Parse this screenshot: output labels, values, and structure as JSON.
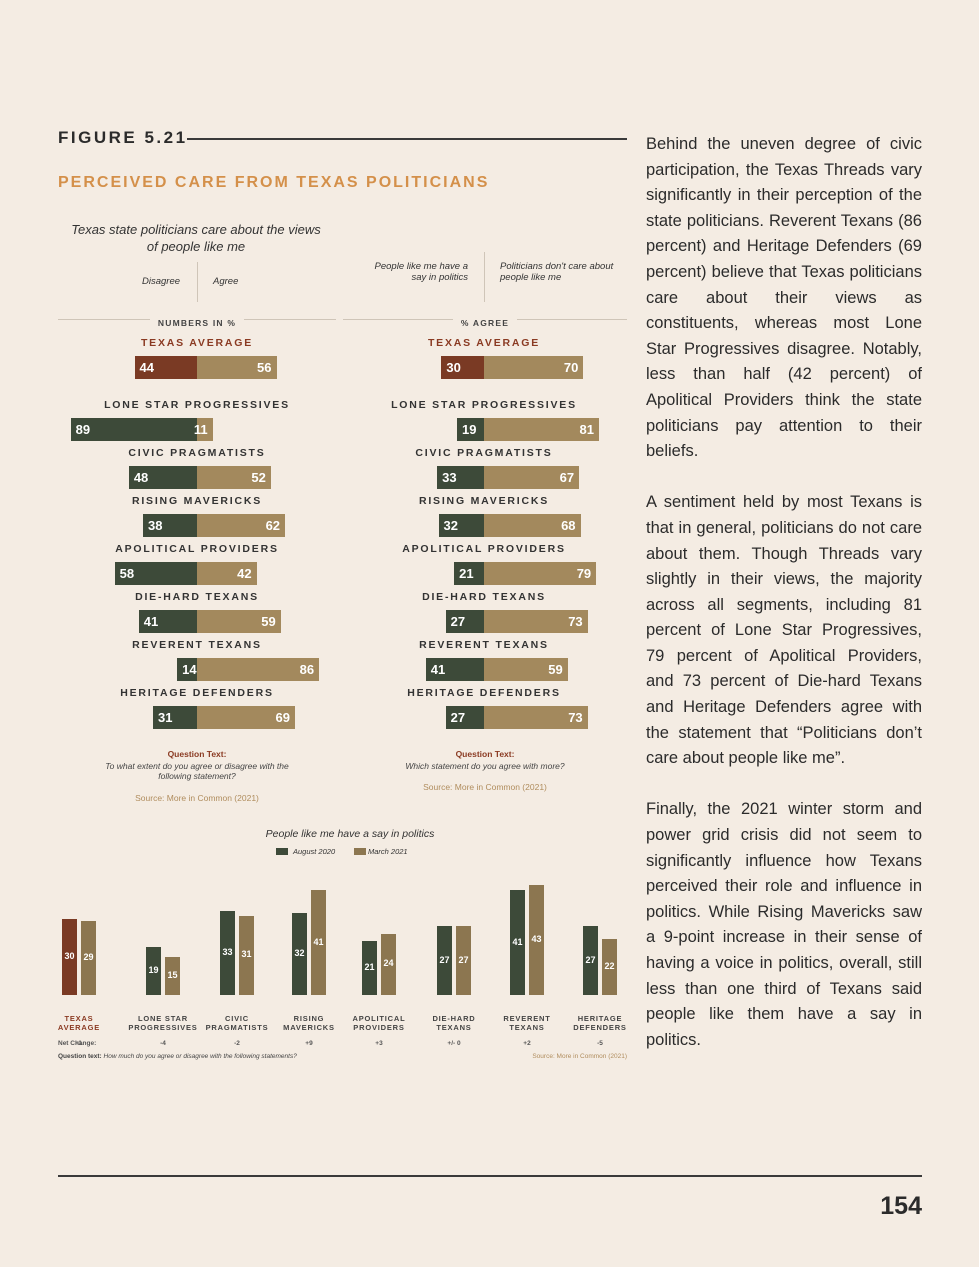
{
  "figure": {
    "label": "FIGURE 5.21",
    "title": "PERCEIVED CARE FROM TEXAS POLITICIANS"
  },
  "colors": {
    "disagree": "#3d4a39",
    "agree": "#a3895d",
    "avg_left": "#7a3a24",
    "aug2020": "#3d4a39",
    "mar2021": "#8c7650",
    "accent": "#d4904a"
  },
  "chart_data": [
    {
      "type": "bar",
      "title": "Texas state politicians care about the views of people like me",
      "section_header": "NUMBERS IN %",
      "series": [
        {
          "name": "Disagree",
          "values": [
            44,
            89,
            48,
            38,
            58,
            41,
            14,
            31
          ]
        },
        {
          "name": "Agree",
          "values": [
            56,
            11,
            52,
            62,
            42,
            59,
            86,
            69
          ]
        }
      ],
      "categories": [
        "TEXAS AVERAGE",
        "LONE STAR PROGRESSIVES",
        "CIVIC PRAGMATISTS",
        "RISING MAVERICKS",
        "APOLITICAL PROVIDERS",
        "DIE-HARD TEXANS",
        "REVERENT TEXANS",
        "HERITAGE DEFENDERS"
      ],
      "question_head": "Question Text:",
      "question_text": "To what extent do you agree or disagree with the following statement?",
      "source": "Source: More in Common (2021)"
    },
    {
      "type": "bar",
      "section_header": "% AGREE",
      "series": [
        {
          "name": "People like me have a say in politics",
          "values": [
            30,
            19,
            33,
            32,
            21,
            27,
            41,
            27
          ]
        },
        {
          "name": "Politicians don't care about people like me",
          "values": [
            70,
            81,
            67,
            68,
            79,
            73,
            59,
            73
          ]
        }
      ],
      "categories": [
        "TEXAS AVERAGE",
        "LONE STAR PROGRESSIVES",
        "CIVIC PRAGMATISTS",
        "RISING MAVERICKS",
        "APOLITICAL PROVIDERS",
        "DIE-HARD TEXANS",
        "REVERENT TEXANS",
        "HERITAGE DEFENDERS"
      ],
      "question_head": "Question Text:",
      "question_text": "Which statement do you agree with more?",
      "source": "Source: More in Common (2021)"
    },
    {
      "type": "bar",
      "title": "People like me have a say in politics",
      "legend": "top-center",
      "series": [
        {
          "name": "August 2020",
          "values": [
            30,
            19,
            33,
            32,
            21,
            27,
            41,
            27
          ]
        },
        {
          "name": "March 2021",
          "values": [
            29,
            15,
            31,
            41,
            24,
            27,
            43,
            22
          ]
        }
      ],
      "categories": [
        [
          "TEXAS",
          "AVERAGE"
        ],
        [
          "LONE STAR",
          "PROGRESSIVES"
        ],
        [
          "CIVIC",
          "PRAGMATISTS"
        ],
        [
          "RISING",
          "MAVERICKS"
        ],
        [
          "APOLITICAL",
          "PROVIDERS"
        ],
        [
          "DIE-HARD",
          "TEXANS"
        ],
        [
          "REVERENT",
          "TEXANS"
        ],
        [
          "HERITAGE",
          "DEFENDERS"
        ]
      ],
      "net_change_label": "Net Change:",
      "net_change": [
        "-1",
        "-4",
        "-2",
        "+9",
        "+3",
        "+/- 0",
        "+2",
        "-5"
      ],
      "question_head": "Question text:",
      "question_text": "How much do you agree or disagree with the following statements?",
      "source": "Source: More in Common (2021)"
    }
  ],
  "body_paragraphs": [
    "Behind the uneven degree of civic participation, the Texas Threads vary significantly in their perception of the state politicians. Reverent Texans (86 percent) and Heritage Defenders (69 percent) believe that Texas politicians care about their views as constituents, whereas most Lone Star Progressives disagree. Notably, less than half (42 percent) of Apolitical Providers think the state politicians pay attention to their beliefs.",
    "A sentiment held by most Texans is that in general, politicians do not care about them. Though Threads vary slightly in their views, the majority across all segments, including 81 percent of Lone Star Progressives, 79 percent of Apolitical Providers, and 73 percent of Die-hard Texans and Heritage Defenders agree with the statement that “Politicians don’t care about people like me”.",
    "Finally, the 2021 winter storm and power grid crisis did not seem to significantly influence how Texans perceived their role and influence in politics. While Rising Mavericks saw a 9-point increase in their sense of having a voice in politics, overall, still less than one third of Texans said people like them have a say in politics."
  ],
  "page_number": "154"
}
